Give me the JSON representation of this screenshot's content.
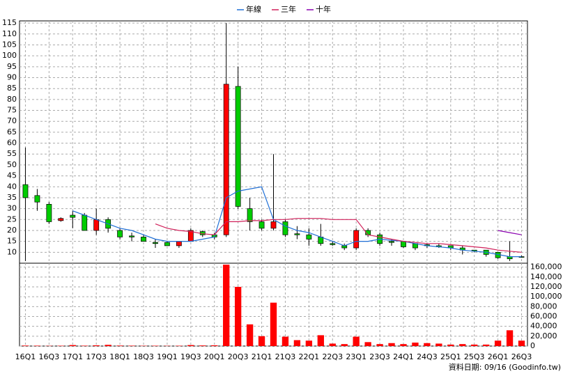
{
  "chart_data": [
    {
      "type": "candlestick",
      "open": [
        41,
        36,
        32,
        24.5,
        27,
        27,
        20,
        25,
        20,
        17.5,
        17,
        14.5,
        14.5,
        13,
        15,
        19.5,
        18,
        18,
        86,
        30,
        24,
        21,
        24,
        18.5,
        18,
        17,
        14,
        13,
        12,
        20,
        18,
        15,
        15,
        14,
        13.5,
        13,
        13,
        12,
        11,
        11,
        10,
        8,
        8
      ],
      "high": [
        58,
        39,
        33,
        26,
        29,
        28,
        30,
        26,
        21,
        19,
        18,
        16,
        15,
        15,
        21,
        20,
        19,
        115,
        95,
        35,
        25,
        55,
        25,
        22,
        21,
        23,
        15,
        14,
        21,
        21,
        19,
        16,
        15,
        14,
        14,
        14,
        13,
        13,
        11,
        11,
        10,
        15,
        8.5
      ],
      "low": [
        6,
        29,
        23,
        24,
        21,
        20,
        18,
        19,
        16,
        15,
        15,
        12,
        13,
        12,
        15,
        17,
        16,
        17,
        30,
        20,
        20,
        20,
        17,
        16,
        13,
        13,
        13,
        11,
        11,
        17,
        13,
        13,
        12,
        11,
        12,
        12,
        11,
        9,
        10,
        8,
        7,
        6,
        7.5
      ],
      "close": [
        35,
        33,
        24,
        25.5,
        26,
        20,
        25,
        21,
        17,
        17,
        15,
        14,
        13,
        15,
        20,
        18,
        17,
        87,
        31,
        24,
        21,
        24,
        18,
        18,
        16,
        14,
        13.5,
        12,
        20,
        18,
        14,
        14.5,
        12.5,
        12,
        13,
        12.5,
        12,
        11,
        10.5,
        9,
        7.5,
        7,
        7.8
      ],
      "up_color": "#ff0000",
      "down_color": "#00cc00",
      "series": [
        {
          "name": "年線",
          "color": "#1f6fd6",
          "values": [
            null,
            null,
            null,
            null,
            29,
            27,
            25,
            23,
            21,
            20,
            18,
            16,
            15,
            15,
            15,
            16,
            17,
            35,
            38,
            39,
            40,
            25,
            22,
            20,
            19,
            17,
            15,
            13,
            15,
            15,
            16,
            15.5,
            15,
            14,
            13,
            12.5,
            12,
            11,
            10.5,
            10,
            9,
            8,
            8
          ]
        },
        {
          "name": "三年",
          "color": "#d0205a",
          "values": [
            null,
            null,
            null,
            null,
            null,
            null,
            null,
            null,
            null,
            null,
            null,
            23,
            21,
            20,
            19.5,
            18.5,
            18,
            24,
            24,
            24.5,
            24.5,
            25,
            25,
            25.5,
            25.5,
            25.5,
            25,
            25,
            25,
            18,
            17,
            16,
            15,
            14.5,
            14,
            14,
            13.5,
            13,
            12.5,
            12,
            11,
            10.5,
            10
          ]
        },
        {
          "name": "十年",
          "color": "#8a00b0",
          "values": [
            null,
            null,
            null,
            null,
            null,
            null,
            null,
            null,
            null,
            null,
            null,
            null,
            null,
            null,
            null,
            null,
            null,
            null,
            null,
            null,
            null,
            null,
            null,
            null,
            null,
            null,
            null,
            null,
            null,
            null,
            null,
            null,
            null,
            null,
            null,
            null,
            null,
            null,
            null,
            null,
            20,
            19,
            18
          ]
        }
      ],
      "ylim": [
        5,
        116
      ],
      "yticks": [
        10,
        15,
        20,
        25,
        30,
        35,
        40,
        45,
        50,
        55,
        60,
        65,
        70,
        75,
        80,
        85,
        90,
        95,
        100,
        105,
        110,
        115
      ],
      "grid": true
    },
    {
      "type": "bar",
      "categories": [
        "16Q1",
        null,
        "16Q3",
        null,
        "17Q1",
        null,
        "17Q3",
        null,
        "18Q1",
        null,
        "18Q3",
        null,
        "19Q1",
        null,
        "19Q3",
        null,
        "20Q1",
        null,
        "20Q3",
        null,
        "21Q1",
        null,
        "21Q3",
        null,
        "22Q1",
        null,
        "22Q3",
        null,
        "23Q1",
        null,
        "23Q3",
        null,
        "24Q1",
        null,
        "24Q3",
        null,
        "25Q1",
        null,
        "25Q3",
        null,
        "26Q1",
        null,
        "26Q3"
      ],
      "values": [
        1000,
        800,
        500,
        700,
        2000,
        800,
        1500,
        2500,
        1000,
        800,
        600,
        700,
        500,
        700,
        2000,
        1200,
        1500,
        165000,
        120000,
        44000,
        20000,
        88000,
        19000,
        12000,
        11000,
        22000,
        5000,
        4000,
        19000,
        8000,
        4000,
        6000,
        4000,
        7000,
        6000,
        5000,
        3000,
        4000,
        3000,
        3000,
        11000,
        32000,
        11000
      ],
      "color": "#ff0000",
      "ylim": [
        0,
        168000
      ],
      "yticks": [
        {
          "value": 0,
          "label": "0"
        },
        {
          "value": 20000,
          "label": "20,000"
        },
        {
          "value": 40000,
          "label": "40,000"
        },
        {
          "value": 60000,
          "label": "60,000"
        },
        {
          "value": 80000,
          "label": "80,000"
        },
        {
          "value": 100000,
          "label": "100,000"
        },
        {
          "value": 120000,
          "label": "120,000"
        },
        {
          "value": 140000,
          "label": "140,000"
        },
        {
          "value": 160000,
          "label": "160,000"
        }
      ],
      "grid": true,
      "annotation": "資料日期: 09/16 (Goodinfo.tw)"
    }
  ]
}
